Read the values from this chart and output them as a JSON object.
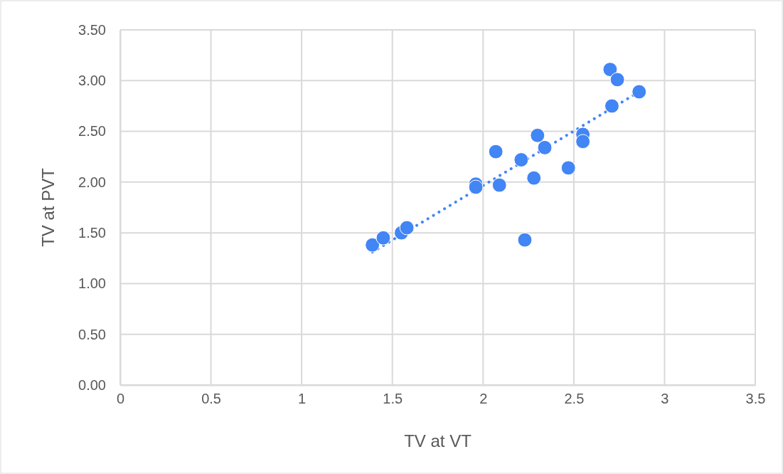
{
  "chart_data": {
    "type": "scatter",
    "xlabel": "TV at VT",
    "ylabel": "TV at PVT",
    "xlim": [
      0,
      3.5
    ],
    "xticks": [
      0,
      0.5,
      1,
      1.5,
      2,
      2.5,
      3,
      3.5
    ],
    "ylim": [
      0,
      3.5
    ],
    "yticks": [
      {
        "value": 0,
        "label": "0.00"
      },
      {
        "value": 0.5,
        "label": "0.50"
      },
      {
        "value": 1,
        "label": "1.00"
      },
      {
        "value": 1.5,
        "label": "1.50"
      },
      {
        "value": 2,
        "label": "2.00"
      },
      {
        "value": 2.5,
        "label": "2.50"
      },
      {
        "value": 3,
        "label": "3.00"
      },
      {
        "value": 3.5,
        "label": "3.50"
      }
    ],
    "grid": true,
    "series": [
      {
        "marker": "circle",
        "color": "#4285f4",
        "x": [
          1.39,
          1.45,
          1.55,
          1.58,
          1.96,
          1.96,
          2.07,
          2.09,
          2.21,
          2.23,
          2.28,
          2.3,
          2.34,
          2.47,
          2.55,
          2.55,
          2.7,
          2.74,
          2.71,
          2.86
        ],
        "values": [
          1.38,
          1.45,
          1.5,
          1.55,
          1.98,
          1.95,
          2.3,
          1.97,
          2.22,
          1.43,
          2.04,
          2.46,
          2.34,
          2.14,
          2.47,
          2.4,
          3.11,
          3.01,
          2.75,
          2.89
        ]
      },
      {
        "type": "line",
        "marker": "none",
        "color": "#4285f4",
        "line_style": "dotted",
        "x": [
          1.39,
          2.86
        ],
        "values": [
          1.31,
          2.89
        ]
      }
    ]
  }
}
